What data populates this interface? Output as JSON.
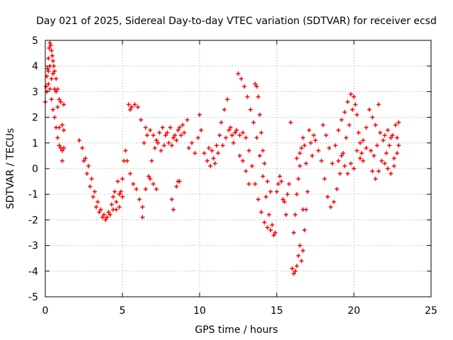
{
  "chart_data": {
    "type": "scatter",
    "title": "Day 021 of 2025, Sidereal Day-to-day VTEC variation (SDTVAR) for receiver ecsd",
    "xlabel": "GPS time / hours",
    "ylabel": "SDTVAR / TECUs",
    "xlim": [
      0,
      25
    ],
    "ylim": [
      -5,
      5
    ],
    "x_ticks": [
      0,
      5,
      10,
      15,
      20,
      25
    ],
    "y_ticks": [
      -5,
      -4,
      -3,
      -2,
      -1,
      0,
      1,
      2,
      3,
      4,
      5
    ],
    "grid": true,
    "marker": "+",
    "series_color": "#ff0000",
    "series": [
      {
        "name": "SDTVAR",
        "points": [
          [
            0.0,
            2.6
          ],
          [
            0.05,
            3.2
          ],
          [
            0.1,
            3.6
          ],
          [
            0.15,
            3.9
          ],
          [
            0.2,
            4.3
          ],
          [
            0.25,
            4.7
          ],
          [
            0.3,
            4.9
          ],
          [
            0.35,
            4.8
          ],
          [
            0.4,
            4.6
          ],
          [
            0.45,
            4.4
          ],
          [
            0.5,
            4.2
          ],
          [
            0.55,
            4.0
          ],
          [
            0.6,
            3.8
          ],
          [
            0.7,
            3.5
          ],
          [
            0.8,
            3.1
          ],
          [
            0.9,
            2.7
          ],
          [
            1.0,
            2.6
          ],
          [
            1.2,
            2.5
          ],
          [
            0.1,
            3.0
          ],
          [
            0.2,
            3.3
          ],
          [
            0.3,
            3.1
          ],
          [
            0.4,
            2.7
          ],
          [
            0.5,
            2.3
          ],
          [
            0.6,
            2.0
          ],
          [
            0.7,
            1.6
          ],
          [
            0.8,
            1.2
          ],
          [
            0.9,
            0.9
          ],
          [
            1.0,
            0.8
          ],
          [
            1.1,
            0.7
          ],
          [
            1.2,
            0.8
          ],
          [
            0.3,
            4.0
          ],
          [
            0.5,
            3.7
          ],
          [
            0.7,
            3.0
          ],
          [
            0.9,
            1.6
          ],
          [
            1.1,
            1.7
          ],
          [
            1.2,
            1.5
          ],
          [
            0.2,
            3.8
          ],
          [
            0.4,
            3.5
          ],
          [
            0.6,
            3.1
          ],
          [
            0.8,
            2.4
          ],
          [
            1.1,
            0.3
          ],
          [
            2.2,
            1.1
          ],
          [
            2.4,
            0.8
          ],
          [
            2.6,
            0.4
          ],
          [
            2.8,
            0.1
          ],
          [
            3.0,
            -0.4
          ],
          [
            3.2,
            -0.9
          ],
          [
            3.4,
            -1.3
          ],
          [
            3.6,
            -1.6
          ],
          [
            3.8,
            -1.8
          ],
          [
            4.0,
            -1.9
          ],
          [
            4.2,
            -1.8
          ],
          [
            4.4,
            -1.6
          ],
          [
            4.6,
            -1.3
          ],
          [
            4.8,
            -1.0
          ],
          [
            5.0,
            -0.4
          ],
          [
            5.1,
            0.3
          ],
          [
            5.2,
            0.7
          ],
          [
            2.5,
            0.3
          ],
          [
            2.7,
            -0.2
          ],
          [
            2.9,
            -0.7
          ],
          [
            3.1,
            -1.1
          ],
          [
            3.3,
            -1.5
          ],
          [
            3.5,
            -1.7
          ],
          [
            3.7,
            -1.9
          ],
          [
            3.9,
            -2.0
          ],
          [
            4.1,
            -1.7
          ],
          [
            4.3,
            -1.4
          ],
          [
            4.5,
            -0.9
          ],
          [
            4.7,
            -0.5
          ],
          [
            4.9,
            -0.9
          ],
          [
            5.0,
            -1.1
          ],
          [
            4.4,
            -1.1
          ],
          [
            4.6,
            -1.6
          ],
          [
            4.8,
            -1.5
          ],
          [
            5.4,
            2.5
          ],
          [
            5.6,
            2.4
          ],
          [
            5.8,
            2.5
          ],
          [
            6.0,
            2.4
          ],
          [
            5.5,
            2.3
          ],
          [
            5.3,
            0.3
          ],
          [
            5.5,
            -0.2
          ],
          [
            5.7,
            -0.6
          ],
          [
            5.9,
            -0.8
          ],
          [
            6.1,
            -1.2
          ],
          [
            6.3,
            -1.5
          ],
          [
            6.3,
            -1.9
          ],
          [
            6.5,
            -0.8
          ],
          [
            6.7,
            -0.3
          ],
          [
            6.9,
            0.3
          ],
          [
            7.1,
            0.8
          ],
          [
            7.3,
            1.0
          ],
          [
            6.4,
            1.0
          ],
          [
            6.6,
            1.3
          ],
          [
            6.8,
            1.5
          ],
          [
            7.0,
            1.3
          ],
          [
            7.2,
            1.1
          ],
          [
            7.4,
            1.4
          ],
          [
            7.6,
            1.6
          ],
          [
            7.8,
            1.3
          ],
          [
            8.0,
            1.0
          ],
          [
            8.2,
            0.9
          ],
          [
            8.4,
            1.3
          ],
          [
            8.6,
            1.5
          ],
          [
            8.8,
            1.3
          ],
          [
            6.2,
            1.9
          ],
          [
            6.5,
            1.6
          ],
          [
            7.5,
            0.7
          ],
          [
            7.7,
            0.9
          ],
          [
            7.9,
            1.4
          ],
          [
            8.1,
            1.6
          ],
          [
            8.3,
            1.2
          ],
          [
            8.5,
            1.1
          ],
          [
            8.7,
            1.6
          ],
          [
            8.9,
            1.7
          ],
          [
            9.0,
            1.4
          ],
          [
            9.2,
            1.9
          ],
          [
            6.8,
            -0.4
          ],
          [
            7.0,
            -0.6
          ],
          [
            7.2,
            -0.8
          ],
          [
            8.2,
            -1.2
          ],
          [
            8.3,
            -1.6
          ],
          [
            8.5,
            -0.7
          ],
          [
            8.6,
            -0.5
          ],
          [
            8.7,
            -0.5
          ],
          [
            9.3,
            0.8
          ],
          [
            9.5,
            1.0
          ],
          [
            9.7,
            0.6
          ],
          [
            9.9,
            1.2
          ],
          [
            10.1,
            1.5
          ],
          [
            10.3,
            0.6
          ],
          [
            10.5,
            0.3
          ],
          [
            10.7,
            0.1
          ],
          [
            10.9,
            0.4
          ],
          [
            11.1,
            0.9
          ],
          [
            11.3,
            1.3
          ],
          [
            11.5,
            0.9
          ],
          [
            11.7,
            1.2
          ],
          [
            11.9,
            1.5
          ],
          [
            12.1,
            1.3
          ],
          [
            10.0,
            2.1
          ],
          [
            10.6,
            0.8
          ],
          [
            10.8,
            0.7
          ],
          [
            11.0,
            0.2
          ],
          [
            11.2,
            0.6
          ],
          [
            11.4,
            1.8
          ],
          [
            11.6,
            2.3
          ],
          [
            11.8,
            2.7
          ],
          [
            12.0,
            1.6
          ],
          [
            12.2,
            1.0
          ],
          [
            12.5,
            3.7
          ],
          [
            12.7,
            3.5
          ],
          [
            12.9,
            3.2
          ],
          [
            13.1,
            2.8
          ],
          [
            13.3,
            2.3
          ],
          [
            13.5,
            1.8
          ],
          [
            13.7,
            1.2
          ],
          [
            13.9,
            0.5
          ],
          [
            14.1,
            -0.3
          ],
          [
            14.3,
            -1.1
          ],
          [
            14.5,
            -1.8
          ],
          [
            14.7,
            -2.2
          ],
          [
            14.9,
            -2.5
          ],
          [
            12.6,
            1.3
          ],
          [
            12.8,
            1.4
          ],
          [
            13.0,
            1.2
          ],
          [
            13.2,
            0.7
          ],
          [
            13.4,
            0.1
          ],
          [
            13.6,
            -0.6
          ],
          [
            13.8,
            -1.2
          ],
          [
            14.0,
            -1.7
          ],
          [
            14.2,
            -2.1
          ],
          [
            14.4,
            -2.3
          ],
          [
            14.6,
            -2.4
          ],
          [
            14.8,
            -2.6
          ],
          [
            13.6,
            3.3
          ],
          [
            13.7,
            3.2
          ],
          [
            13.8,
            2.8
          ],
          [
            13.9,
            2.1
          ],
          [
            14.0,
            1.4
          ],
          [
            14.1,
            0.7
          ],
          [
            12.3,
            1.4
          ],
          [
            12.4,
            1.5
          ],
          [
            12.6,
            0.5
          ],
          [
            12.8,
            0.3
          ],
          [
            13.0,
            -0.1
          ],
          [
            13.2,
            -0.6
          ],
          [
            14.2,
            0.2
          ],
          [
            14.4,
            -0.5
          ],
          [
            14.6,
            -0.9
          ],
          [
            15.0,
            -0.9
          ],
          [
            15.1,
            -0.6
          ],
          [
            15.2,
            -0.3
          ],
          [
            15.3,
            -0.5
          ],
          [
            15.4,
            -1.2
          ],
          [
            15.5,
            -1.3
          ],
          [
            15.6,
            -1.8
          ],
          [
            15.7,
            -1.0
          ],
          [
            15.8,
            -0.6
          ],
          [
            15.9,
            1.8
          ],
          [
            16.0,
            -3.9
          ],
          [
            16.1,
            -4.1
          ],
          [
            16.2,
            -4.0
          ],
          [
            16.3,
            -3.8
          ],
          [
            16.4,
            -3.4
          ],
          [
            16.5,
            -3.0
          ],
          [
            16.6,
            -3.6
          ],
          [
            16.7,
            -3.2
          ],
          [
            16.8,
            -2.4
          ],
          [
            16.9,
            -1.6
          ],
          [
            17.0,
            -0.9
          ],
          [
            16.2,
            -1.8
          ],
          [
            16.3,
            -1.0
          ],
          [
            16.4,
            -0.4
          ],
          [
            16.5,
            0.1
          ],
          [
            16.6,
            0.8
          ],
          [
            16.7,
            1.2
          ],
          [
            16.8,
            0.9
          ],
          [
            16.1,
            -2.5
          ],
          [
            16.3,
            0.4
          ],
          [
            16.5,
            0.6
          ],
          [
            16.7,
            -1.6
          ],
          [
            16.9,
            0.2
          ],
          [
            17.1,
            1.5
          ],
          [
            17.2,
            1.0
          ],
          [
            17.3,
            0.5
          ],
          [
            17.4,
            1.3
          ],
          [
            17.5,
            1.1
          ],
          [
            17.7,
            0.7
          ],
          [
            17.9,
            0.3
          ],
          [
            18.1,
            -0.4
          ],
          [
            18.3,
            -1.1
          ],
          [
            18.5,
            -1.5
          ],
          [
            18.7,
            -1.3
          ],
          [
            18.9,
            -0.8
          ],
          [
            19.1,
            -0.2
          ],
          [
            19.3,
            0.6
          ],
          [
            19.5,
            1.2
          ],
          [
            19.7,
            1.7
          ],
          [
            19.9,
            2.3
          ],
          [
            20.0,
            2.8
          ],
          [
            20.1,
            2.5
          ],
          [
            18.0,
            1.7
          ],
          [
            18.2,
            1.3
          ],
          [
            18.4,
            0.8
          ],
          [
            18.6,
            0.2
          ],
          [
            18.8,
            0.9
          ],
          [
            19.0,
            1.5
          ],
          [
            19.2,
            1.9
          ],
          [
            19.4,
            2.2
          ],
          [
            19.6,
            2.6
          ],
          [
            19.8,
            2.9
          ],
          [
            20.2,
            2.1
          ],
          [
            20.3,
            1.4
          ],
          [
            20.4,
            1.0
          ],
          [
            20.5,
            0.6
          ],
          [
            20.6,
            0.3
          ],
          [
            20.8,
            1.6
          ],
          [
            21.0,
            2.3
          ],
          [
            21.2,
            2.0
          ],
          [
            21.4,
            1.7
          ],
          [
            21.6,
            2.5
          ],
          [
            21.1,
            0.7
          ],
          [
            21.3,
            0.5
          ],
          [
            21.5,
            0.9
          ],
          [
            21.7,
            1.4
          ],
          [
            21.9,
            1.1
          ],
          [
            22.1,
            0.6
          ],
          [
            22.3,
            0.9
          ],
          [
            22.5,
            1.3
          ],
          [
            22.7,
            1.7
          ],
          [
            22.9,
            1.8
          ],
          [
            21.2,
            -0.1
          ],
          [
            21.4,
            -0.4
          ],
          [
            21.6,
            -0.1
          ],
          [
            21.8,
            0.3
          ],
          [
            22.0,
            0.2
          ],
          [
            22.2,
            0.0
          ],
          [
            22.4,
            -0.2
          ],
          [
            22.6,
            0.1
          ],
          [
            22.8,
            0.6
          ],
          [
            22.9,
            0.9
          ],
          [
            22.0,
            1.3
          ],
          [
            22.2,
            1.5
          ],
          [
            22.4,
            1.2
          ],
          [
            22.6,
            0.4
          ],
          [
            22.8,
            1.2
          ],
          [
            19.0,
            0.3
          ],
          [
            19.2,
            0.5
          ],
          [
            19.4,
            0.1
          ],
          [
            19.6,
            -0.2
          ],
          [
            19.8,
            0.2
          ],
          [
            20.0,
            0.0
          ],
          [
            20.2,
            0.7
          ],
          [
            20.4,
            0.4
          ],
          [
            20.6,
            1.1
          ],
          [
            20.8,
            0.8
          ]
        ]
      }
    ]
  }
}
